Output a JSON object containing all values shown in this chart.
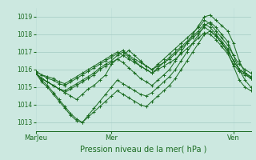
{
  "xlabel": "Pression niveau de la mer( hPa )",
  "bg_color": "#cce8e0",
  "line_color": "#1a6b20",
  "grid_major_color": "#aacfc8",
  "grid_minor_color": "#bbddd6",
  "ylim": [
    1012.5,
    1019.5
  ],
  "yticks": [
    1013,
    1014,
    1015,
    1016,
    1017,
    1018,
    1019
  ],
  "xtick_labels": [
    "MarJeu",
    "Mer",
    "Ven"
  ],
  "xtick_positions": [
    0,
    13,
    34
  ],
  "n_points": 38,
  "series": [
    [
      1015.8,
      1015.5,
      1015.3,
      1015.1,
      1014.9,
      1014.7,
      1014.5,
      1014.3,
      1014.6,
      1014.9,
      1015.1,
      1015.4,
      1015.7,
      1016.3,
      1016.6,
      1016.4,
      1016.1,
      1015.8,
      1015.5,
      1015.3,
      1015.1,
      1015.4,
      1015.7,
      1016.0,
      1016.5,
      1017.0,
      1017.5,
      1018.0,
      1018.5,
      1019.0,
      1019.1,
      1018.8,
      1018.5,
      1018.2,
      1017.5,
      1016.5,
      1015.8,
      1015.5
    ],
    [
      1015.8,
      1015.4,
      1015.1,
      1014.7,
      1014.3,
      1013.9,
      1013.5,
      1013.2,
      1013.0,
      1013.4,
      1013.8,
      1014.2,
      1014.6,
      1015.0,
      1015.4,
      1015.2,
      1015.0,
      1014.8,
      1014.6,
      1014.5,
      1014.7,
      1015.0,
      1015.3,
      1015.6,
      1016.0,
      1016.5,
      1017.0,
      1017.5,
      1018.0,
      1018.5,
      1018.7,
      1018.4,
      1018.0,
      1017.6,
      1016.8,
      1016.0,
      1015.4,
      1015.0
    ],
    [
      1015.8,
      1015.3,
      1015.0,
      1014.6,
      1014.2,
      1013.8,
      1013.4,
      1013.1,
      1013.0,
      1013.3,
      1013.6,
      1013.9,
      1014.2,
      1014.5,
      1014.8,
      1014.6,
      1014.4,
      1014.2,
      1014.0,
      1013.9,
      1014.2,
      1014.5,
      1014.8,
      1015.1,
      1015.5,
      1016.0,
      1016.5,
      1017.0,
      1017.5,
      1018.0,
      1018.2,
      1017.9,
      1017.5,
      1017.0,
      1016.2,
      1015.4,
      1015.0,
      1014.8
    ],
    [
      1015.8,
      1015.5,
      1015.3,
      1015.1,
      1014.9,
      1014.7,
      1014.9,
      1015.1,
      1015.3,
      1015.5,
      1015.7,
      1016.0,
      1016.2,
      1016.4,
      1016.6,
      1016.8,
      1017.1,
      1016.8,
      1016.5,
      1016.2,
      1016.0,
      1016.3,
      1016.6,
      1016.9,
      1017.2,
      1017.5,
      1017.8,
      1018.1,
      1018.4,
      1018.8,
      1018.6,
      1018.2,
      1017.8,
      1017.4,
      1016.8,
      1016.3,
      1016.0,
      1015.8
    ],
    [
      1015.8,
      1015.5,
      1015.3,
      1015.1,
      1014.9,
      1014.8,
      1015.0,
      1015.2,
      1015.4,
      1015.6,
      1015.8,
      1016.1,
      1016.3,
      1016.5,
      1016.8,
      1017.0,
      1016.7,
      1016.5,
      1016.2,
      1016.0,
      1015.8,
      1016.1,
      1016.4,
      1016.7,
      1017.0,
      1017.3,
      1017.6,
      1017.9,
      1018.2,
      1018.6,
      1018.4,
      1018.0,
      1017.6,
      1017.2,
      1016.5,
      1016.0,
      1015.8,
      1015.6
    ],
    [
      1015.9,
      1015.7,
      1015.5,
      1015.4,
      1015.2,
      1015.1,
      1015.3,
      1015.5,
      1015.7,
      1015.9,
      1016.1,
      1016.3,
      1016.5,
      1016.7,
      1016.9,
      1017.1,
      1016.8,
      1016.6,
      1016.4,
      1016.2,
      1016.0,
      1016.2,
      1016.4,
      1016.6,
      1016.9,
      1017.2,
      1017.5,
      1017.8,
      1018.1,
      1018.4,
      1018.2,
      1017.9,
      1017.5,
      1017.1,
      1016.5,
      1016.0,
      1015.8,
      1015.6
    ],
    [
      1015.9,
      1015.7,
      1015.6,
      1015.5,
      1015.3,
      1015.2,
      1015.4,
      1015.6,
      1015.8,
      1016.0,
      1016.2,
      1016.4,
      1016.6,
      1016.8,
      1017.0,
      1016.8,
      1016.6,
      1016.4,
      1016.2,
      1016.0,
      1015.8,
      1016.0,
      1016.2,
      1016.4,
      1016.6,
      1016.9,
      1017.2,
      1017.5,
      1017.8,
      1018.1,
      1018.0,
      1017.7,
      1017.3,
      1016.9,
      1016.3,
      1015.9,
      1015.7,
      1015.5
    ]
  ]
}
